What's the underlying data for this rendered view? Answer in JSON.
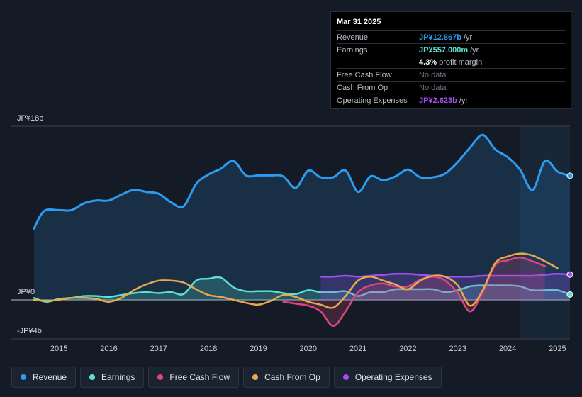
{
  "tooltip": {
    "date": "Mar 31 2025",
    "revenue_label": "Revenue",
    "revenue_value": "JP¥12.867b",
    "revenue_unit": "/yr",
    "earnings_label": "Earnings",
    "earnings_value": "JP¥557.000m",
    "earnings_unit": "/yr",
    "margin_value": "4.3%",
    "margin_label": "profit margin",
    "fcf_label": "Free Cash Flow",
    "fcf_value": "No data",
    "cfo_label": "Cash From Op",
    "cfo_value": "No data",
    "opex_label": "Operating Expenses",
    "opex_value": "JP¥2.623b",
    "opex_unit": "/yr"
  },
  "legend": [
    {
      "label": "Revenue",
      "color": "#2d9bf0"
    },
    {
      "label": "Earnings",
      "color": "#5ce0cf"
    },
    {
      "label": "Free Cash Flow",
      "color": "#d94880"
    },
    {
      "label": "Cash From Op",
      "color": "#e8a84c"
    },
    {
      "label": "Operating Expenses",
      "color": "#a54ef0"
    }
  ],
  "chart_data": {
    "type": "line",
    "y_unit": "JP¥ billions",
    "ylim": [
      -4,
      18
    ],
    "y_tick_labels": {
      "top": "JP¥18b",
      "zero": "JP¥0",
      "bottom": "-JP¥4b"
    },
    "x_tick_labels": [
      "2015",
      "2016",
      "2017",
      "2018",
      "2019",
      "2020",
      "2021",
      "2022",
      "2023",
      "2024",
      "2025"
    ],
    "x_ticks": [
      2015,
      2016,
      2017,
      2018,
      2019,
      2020,
      2021,
      2022,
      2023,
      2024,
      2025
    ],
    "xlim": [
      2014.5,
      2025.25
    ],
    "highlight_range": [
      2024.25,
      2025.25
    ],
    "series": [
      {
        "name": "Revenue",
        "color": "#2d9bf0",
        "fill": true,
        "points": [
          [
            2014.5,
            7.4
          ],
          [
            2014.7,
            9.2
          ],
          [
            2015.0,
            9.3
          ],
          [
            2015.25,
            9.3
          ],
          [
            2015.5,
            10.0
          ],
          [
            2015.75,
            10.3
          ],
          [
            2016.0,
            10.3
          ],
          [
            2016.25,
            10.9
          ],
          [
            2016.5,
            11.4
          ],
          [
            2016.75,
            11.2
          ],
          [
            2017.0,
            11.0
          ],
          [
            2017.25,
            10.1
          ],
          [
            2017.5,
            9.7
          ],
          [
            2017.75,
            12.0
          ],
          [
            2018.0,
            13.0
          ],
          [
            2018.25,
            13.6
          ],
          [
            2018.5,
            14.4
          ],
          [
            2018.75,
            12.9
          ],
          [
            2019.0,
            12.9
          ],
          [
            2019.25,
            12.9
          ],
          [
            2019.5,
            12.8
          ],
          [
            2019.75,
            11.6
          ],
          [
            2020.0,
            13.4
          ],
          [
            2020.25,
            12.7
          ],
          [
            2020.5,
            12.7
          ],
          [
            2020.75,
            13.4
          ],
          [
            2021.0,
            11.2
          ],
          [
            2021.25,
            12.8
          ],
          [
            2021.5,
            12.4
          ],
          [
            2021.75,
            12.8
          ],
          [
            2022.0,
            13.5
          ],
          [
            2022.25,
            12.7
          ],
          [
            2022.5,
            12.7
          ],
          [
            2022.75,
            13.1
          ],
          [
            2023.0,
            14.3
          ],
          [
            2023.25,
            15.8
          ],
          [
            2023.5,
            17.1
          ],
          [
            2023.75,
            15.6
          ],
          [
            2024.0,
            14.8
          ],
          [
            2024.25,
            13.5
          ],
          [
            2024.5,
            11.4
          ],
          [
            2024.75,
            14.4
          ],
          [
            2025.0,
            13.3
          ],
          [
            2025.25,
            12.867
          ]
        ]
      },
      {
        "name": "Earnings",
        "color": "#5ce0cf",
        "fill": true,
        "points": [
          [
            2014.5,
            0.2
          ],
          [
            2014.75,
            -0.2
          ],
          [
            2015.0,
            0.1
          ],
          [
            2015.25,
            0.2
          ],
          [
            2015.5,
            0.4
          ],
          [
            2015.75,
            0.4
          ],
          [
            2016.0,
            0.3
          ],
          [
            2016.25,
            0.5
          ],
          [
            2016.5,
            0.7
          ],
          [
            2016.75,
            0.8
          ],
          [
            2017.0,
            0.7
          ],
          [
            2017.25,
            0.8
          ],
          [
            2017.5,
            0.6
          ],
          [
            2017.75,
            2.0
          ],
          [
            2018.0,
            2.2
          ],
          [
            2018.25,
            2.3
          ],
          [
            2018.5,
            1.3
          ],
          [
            2018.75,
            0.9
          ],
          [
            2019.0,
            0.9
          ],
          [
            2019.25,
            0.9
          ],
          [
            2019.5,
            0.7
          ],
          [
            2019.75,
            0.6
          ],
          [
            2020.0,
            1.0
          ],
          [
            2020.25,
            0.8
          ],
          [
            2020.5,
            0.8
          ],
          [
            2020.75,
            0.9
          ],
          [
            2021.0,
            0.4
          ],
          [
            2021.25,
            0.8
          ],
          [
            2021.5,
            0.8
          ],
          [
            2021.75,
            1.1
          ],
          [
            2022.0,
            1.1
          ],
          [
            2022.25,
            1.1
          ],
          [
            2022.5,
            1.1
          ],
          [
            2022.75,
            0.8
          ],
          [
            2023.0,
            1.0
          ],
          [
            2023.25,
            1.4
          ],
          [
            2023.5,
            1.5
          ],
          [
            2023.75,
            1.5
          ],
          [
            2024.0,
            1.5
          ],
          [
            2024.25,
            1.4
          ],
          [
            2024.5,
            1.0
          ],
          [
            2024.75,
            1.0
          ],
          [
            2025.0,
            1.0
          ],
          [
            2025.25,
            0.557
          ]
        ]
      },
      {
        "name": "Free Cash Flow",
        "color": "#d94880",
        "fill": true,
        "points": [
          [
            2019.5,
            -0.2
          ],
          [
            2019.75,
            -0.4
          ],
          [
            2020.0,
            -0.6
          ],
          [
            2020.25,
            -1.2
          ],
          [
            2020.5,
            -2.7
          ],
          [
            2020.75,
            -1.2
          ],
          [
            2021.0,
            0.8
          ],
          [
            2021.25,
            1.5
          ],
          [
            2021.5,
            1.7
          ],
          [
            2021.75,
            1.4
          ],
          [
            2022.0,
            1.4
          ],
          [
            2022.25,
            2.1
          ],
          [
            2022.5,
            2.4
          ],
          [
            2022.75,
            2.0
          ],
          [
            2023.0,
            0.7
          ],
          [
            2023.25,
            -1.2
          ],
          [
            2023.5,
            0.8
          ],
          [
            2023.75,
            3.6
          ],
          [
            2024.0,
            4.1
          ],
          [
            2024.25,
            4.4
          ],
          [
            2024.5,
            4.0
          ],
          [
            2024.75,
            3.5
          ]
        ]
      },
      {
        "name": "Cash From Op",
        "color": "#e8a84c",
        "fill": false,
        "points": [
          [
            2014.5,
            0.0
          ],
          [
            2014.75,
            -0.1
          ],
          [
            2015.0,
            0.0
          ],
          [
            2015.25,
            0.2
          ],
          [
            2015.5,
            0.2
          ],
          [
            2015.75,
            0.1
          ],
          [
            2016.0,
            -0.2
          ],
          [
            2016.25,
            0.2
          ],
          [
            2016.5,
            1.0
          ],
          [
            2016.75,
            1.6
          ],
          [
            2017.0,
            2.0
          ],
          [
            2017.25,
            2.0
          ],
          [
            2017.5,
            1.8
          ],
          [
            2017.75,
            1.1
          ],
          [
            2018.0,
            0.5
          ],
          [
            2018.25,
            0.3
          ],
          [
            2018.5,
            0.0
          ],
          [
            2018.75,
            -0.3
          ],
          [
            2019.0,
            -0.5
          ],
          [
            2019.25,
            -0.1
          ],
          [
            2019.5,
            0.5
          ],
          [
            2019.75,
            0.3
          ],
          [
            2020.0,
            -0.2
          ],
          [
            2020.25,
            -0.5
          ],
          [
            2020.5,
            -0.8
          ],
          [
            2020.75,
            0.4
          ],
          [
            2021.0,
            2.0
          ],
          [
            2021.25,
            2.4
          ],
          [
            2021.5,
            2.0
          ],
          [
            2021.75,
            1.6
          ],
          [
            2022.0,
            1.1
          ],
          [
            2022.25,
            2.0
          ],
          [
            2022.5,
            2.5
          ],
          [
            2022.75,
            2.4
          ],
          [
            2023.0,
            1.5
          ],
          [
            2023.25,
            -0.6
          ],
          [
            2023.5,
            1.0
          ],
          [
            2023.75,
            3.8
          ],
          [
            2024.0,
            4.5
          ],
          [
            2024.25,
            4.8
          ],
          [
            2024.5,
            4.6
          ],
          [
            2024.75,
            4.0
          ],
          [
            2025.0,
            3.3
          ]
        ]
      },
      {
        "name": "Operating Expenses",
        "color": "#a54ef0",
        "fill": true,
        "points": [
          [
            2020.25,
            2.4
          ],
          [
            2020.5,
            2.4
          ],
          [
            2020.75,
            2.5
          ],
          [
            2021.0,
            2.4
          ],
          [
            2021.25,
            2.5
          ],
          [
            2021.5,
            2.6
          ],
          [
            2021.75,
            2.7
          ],
          [
            2022.0,
            2.7
          ],
          [
            2022.25,
            2.6
          ],
          [
            2022.5,
            2.5
          ],
          [
            2022.75,
            2.4
          ],
          [
            2023.0,
            2.4
          ],
          [
            2023.25,
            2.4
          ],
          [
            2023.5,
            2.5
          ],
          [
            2023.75,
            2.5
          ],
          [
            2024.0,
            2.5
          ],
          [
            2024.25,
            2.5
          ],
          [
            2024.5,
            2.5
          ],
          [
            2024.75,
            2.6
          ],
          [
            2025.0,
            2.7
          ],
          [
            2025.25,
            2.623
          ]
        ]
      }
    ]
  }
}
